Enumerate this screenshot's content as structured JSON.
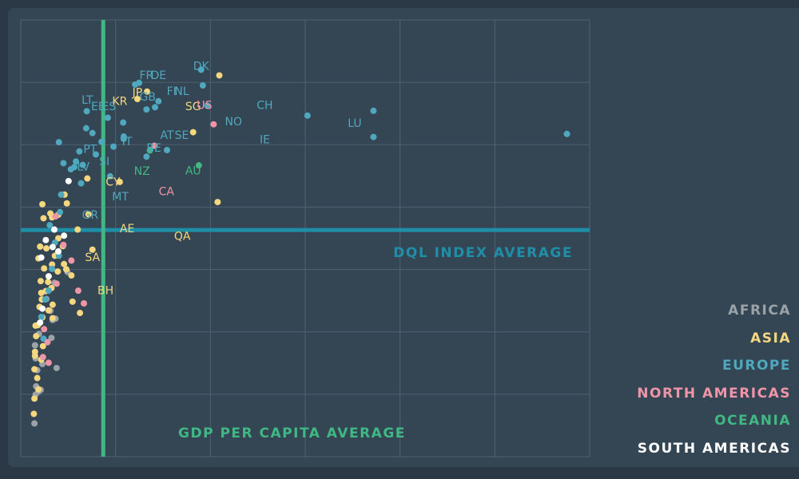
{
  "chart_data": {
    "type": "scatter",
    "title": "",
    "xlabel": "",
    "ylabel": "",
    "xlim": [
      0,
      100
    ],
    "ylim": [
      0,
      100
    ],
    "grid": true,
    "legend_placement": "right",
    "reference_lines": {
      "vertical_label": "GDP PER CAPITA AVERAGE",
      "vertical_value": 14.5,
      "horizontal_label": "DQL INDEX AVERAGE",
      "horizontal_value": 51.9,
      "vertical_color": "#3fb883",
      "horizontal_color": "#1f8fa8"
    },
    "colors": {
      "grid": "#4f6270",
      "panel": "#344554",
      "background": "#2b3947"
    },
    "series": [
      {
        "name": "AFRICA",
        "color": "#9aa3a8",
        "points": [
          [
            2.5,
            25.5
          ],
          [
            3.2,
            28.1
          ],
          [
            3.8,
            21.2
          ],
          [
            2.9,
            19.8
          ],
          [
            5.4,
            27.2
          ],
          [
            3.1,
            14.9
          ],
          [
            2.6,
            14.2
          ],
          [
            3.5,
            15.3
          ],
          [
            2.4,
            7.6
          ],
          [
            5.6,
            31.3
          ],
          [
            6.3,
            20.3
          ],
          [
            4.5,
            36.1
          ],
          [
            5.2,
            33.4
          ],
          [
            8.2,
            42.3
          ],
          [
            5.9,
            39.8
          ],
          [
            2.7,
            16.1
          ],
          [
            6.1,
            31.6
          ],
          [
            2.6,
            22.5
          ]
        ]
      },
      {
        "name": "ASIA",
        "color": "#f4d77e",
        "points": [
          [
            34.9,
            87.3
          ],
          [
            22.2,
            83.6
          ],
          [
            20.5,
            81.9
          ],
          [
            30.3,
            74.3
          ],
          [
            17.4,
            62.9
          ],
          [
            11.7,
            63.7
          ],
          [
            34.6,
            58.3
          ],
          [
            11.9,
            55.5
          ],
          [
            12.6,
            47.4
          ],
          [
            3.8,
            57.8
          ],
          [
            4.0,
            54.6
          ],
          [
            5.2,
            55.7
          ],
          [
            6.6,
            55.4
          ],
          [
            5.5,
            54.8
          ],
          [
            3.4,
            48.1
          ],
          [
            4.5,
            47.7
          ],
          [
            7.4,
            48.2
          ],
          [
            3.1,
            45.4
          ],
          [
            6.5,
            42.4
          ],
          [
            7.6,
            44.1
          ],
          [
            8.9,
            41.5
          ],
          [
            8.0,
            42.9
          ],
          [
            4.1,
            43.1
          ],
          [
            3.5,
            40.2
          ],
          [
            9.1,
            35.5
          ],
          [
            3.6,
            37.5
          ],
          [
            5.4,
            38.6
          ],
          [
            4.4,
            37.9
          ],
          [
            5.6,
            34.8
          ],
          [
            10.4,
            32.9
          ],
          [
            4.9,
            33.5
          ],
          [
            3.3,
            34.3
          ],
          [
            5.6,
            31.7
          ],
          [
            3.8,
            31.9
          ],
          [
            3.0,
            30.1
          ],
          [
            2.7,
            27.6
          ],
          [
            3.9,
            25.3
          ],
          [
            2.5,
            24.0
          ],
          [
            2.5,
            23.1
          ],
          [
            3.6,
            22.2
          ],
          [
            2.9,
            18.0
          ],
          [
            3.1,
            15.4
          ],
          [
            2.4,
            13.3
          ],
          [
            2.3,
            9.8
          ],
          [
            2.4,
            20.0
          ],
          [
            2.6,
            30.0
          ],
          [
            3.7,
            36.0
          ],
          [
            5.5,
            44.0
          ],
          [
            6.0,
            46.0
          ],
          [
            4.8,
            40.0
          ],
          [
            7.7,
            60.0
          ],
          [
            8.1,
            58.0
          ],
          [
            10.0,
            52.0
          ],
          [
            6.6,
            50.0
          ]
        ]
      },
      {
        "name": "EUROPE",
        "color": "#4fa8bd",
        "points": [
          [
            31.7,
            88.6
          ],
          [
            24.2,
            81.4
          ],
          [
            20.8,
            85.6
          ],
          [
            22.1,
            79.5
          ],
          [
            18.0,
            76.5
          ],
          [
            15.3,
            77.6
          ],
          [
            11.6,
            79.1
          ],
          [
            14.2,
            72.1
          ],
          [
            13.2,
            69.2
          ],
          [
            10.3,
            69.9
          ],
          [
            20.1,
            85.2
          ],
          [
            32.0,
            85.0
          ],
          [
            32.8,
            80.4
          ],
          [
            23.6,
            80.0
          ],
          [
            50.4,
            78.1
          ],
          [
            62.0,
            79.2
          ],
          [
            62.0,
            73.2
          ],
          [
            96.0,
            73.9
          ],
          [
            25.7,
            70.2
          ],
          [
            22.1,
            68.7
          ],
          [
            18.1,
            73.3
          ],
          [
            16.3,
            71.0
          ],
          [
            12.6,
            74.1
          ],
          [
            11.5,
            75.2
          ],
          [
            10.9,
            66.8
          ],
          [
            9.4,
            66.3
          ],
          [
            8.8,
            65.8
          ],
          [
            7.5,
            67.2
          ],
          [
            9.7,
            67.6
          ],
          [
            10.6,
            62.6
          ],
          [
            15.7,
            64.2
          ],
          [
            7.1,
            60.0
          ],
          [
            6.9,
            56.0
          ],
          [
            5.1,
            53.0
          ],
          [
            6.0,
            49.0
          ],
          [
            6.7,
            46.0
          ],
          [
            5.5,
            43.0
          ],
          [
            4.9,
            38.0
          ],
          [
            4.3,
            36.0
          ],
          [
            3.6,
            32.0
          ],
          [
            4.0,
            27.0
          ],
          [
            6.7,
            72.0
          ],
          [
            18.1,
            72.8
          ]
        ]
      },
      {
        "name": "NORTH AMERICAS",
        "color": "#ef95a8",
        "points": [
          [
            33.9,
            76.1
          ],
          [
            23.5,
            71.2
          ],
          [
            7.5,
            48.5
          ],
          [
            8.9,
            44.9
          ],
          [
            10.1,
            38.0
          ],
          [
            6.3,
            39.6
          ],
          [
            11.1,
            35.1
          ],
          [
            4.7,
            26.2
          ],
          [
            3.9,
            22.8
          ],
          [
            4.1,
            29.2
          ],
          [
            4.9,
            21.5
          ],
          [
            6.1,
            55.0
          ]
        ]
      },
      {
        "name": "OCEANIA",
        "color": "#3fb883",
        "points": [
          [
            22.7,
            70.1
          ],
          [
            31.3,
            66.7
          ]
        ]
      },
      {
        "name": "SOUTH AMERICAS",
        "color": "#ffffff",
        "points": [
          [
            8.4,
            63.1
          ],
          [
            5.9,
            52.0
          ],
          [
            5.6,
            48.0
          ],
          [
            3.6,
            45.6
          ],
          [
            4.4,
            49.6
          ],
          [
            4.9,
            41.3
          ],
          [
            3.8,
            33.9
          ],
          [
            7.6,
            50.6
          ],
          [
            3.4,
            30.7
          ],
          [
            6.6,
            47.0
          ]
        ]
      }
    ],
    "labels": [
      {
        "text": "DK",
        "x": 31.7,
        "y": 88.6,
        "series": "EUROPE"
      },
      {
        "text": "FR",
        "x": 22.1,
        "y": 86.5,
        "series": "EUROPE"
      },
      {
        "text": "DE",
        "x": 24.2,
        "y": 86.5,
        "series": "EUROPE"
      },
      {
        "text": "JP",
        "x": 20.5,
        "y": 82.5,
        "series": "ASIA"
      },
      {
        "text": "GB",
        "x": 22.3,
        "y": 81.5,
        "series": "EUROPE"
      },
      {
        "text": "FI",
        "x": 26.5,
        "y": 82.8,
        "series": "EUROPE"
      },
      {
        "text": "NL",
        "x": 28.3,
        "y": 82.8,
        "series": "EUROPE"
      },
      {
        "text": "LT",
        "x": 11.7,
        "y": 80.8,
        "series": "EUROPE"
      },
      {
        "text": "EE",
        "x": 13.6,
        "y": 79.3,
        "series": "EUROPE"
      },
      {
        "text": "ES",
        "x": 15.5,
        "y": 79.3,
        "series": "EUROPE"
      },
      {
        "text": "KR",
        "x": 17.4,
        "y": 80.5,
        "series": "ASIA"
      },
      {
        "text": "SG",
        "x": 30.3,
        "y": 79.3,
        "series": "ASIA"
      },
      {
        "text": "US",
        "x": 32.3,
        "y": 79.6,
        "series": "NORTH AMERICAS"
      },
      {
        "text": "NO",
        "x": 37.4,
        "y": 75.9,
        "series": "EUROPE"
      },
      {
        "text": "CH",
        "x": 42.9,
        "y": 79.6,
        "series": "EUROPE"
      },
      {
        "text": "LU",
        "x": 58.7,
        "y": 75.5,
        "series": "EUROPE"
      },
      {
        "text": "IE",
        "x": 42.9,
        "y": 71.8,
        "series": "EUROPE"
      },
      {
        "text": "AT",
        "x": 25.7,
        "y": 72.8,
        "series": "EUROPE"
      },
      {
        "text": "SE",
        "x": 28.3,
        "y": 72.8,
        "series": "EUROPE"
      },
      {
        "text": "IT",
        "x": 18.7,
        "y": 71.3,
        "series": "EUROPE"
      },
      {
        "text": "BE",
        "x": 23.4,
        "y": 69.8,
        "series": "EUROPE"
      },
      {
        "text": "PT",
        "x": 12.2,
        "y": 69.6,
        "series": "EUROPE"
      },
      {
        "text": "SI",
        "x": 14.7,
        "y": 66.7,
        "series": "EUROPE"
      },
      {
        "text": "LV",
        "x": 11.0,
        "y": 65.5,
        "series": "EUROPE"
      },
      {
        "text": "NZ",
        "x": 21.3,
        "y": 64.5,
        "series": "OCEANIA"
      },
      {
        "text": "AU",
        "x": 30.3,
        "y": 64.6,
        "series": "OCEANIA"
      },
      {
        "text": "CY",
        "x": 16.2,
        "y": 62.1,
        "series": "ASIA"
      },
      {
        "text": "MT",
        "x": 17.5,
        "y": 58.7,
        "series": "EUROPE"
      },
      {
        "text": "CA",
        "x": 25.6,
        "y": 59.9,
        "series": "NORTH AMERICAS"
      },
      {
        "text": "GR",
        "x": 12.2,
        "y": 54.5,
        "series": "EUROPE"
      },
      {
        "text": "AE",
        "x": 18.7,
        "y": 51.4,
        "series": "ASIA"
      },
      {
        "text": "QA",
        "x": 28.4,
        "y": 49.6,
        "series": "ASIA"
      },
      {
        "text": "SA",
        "x": 12.6,
        "y": 44.8,
        "series": "ASIA"
      },
      {
        "text": "BH",
        "x": 14.9,
        "y": 37.2,
        "series": "ASIA"
      }
    ]
  }
}
